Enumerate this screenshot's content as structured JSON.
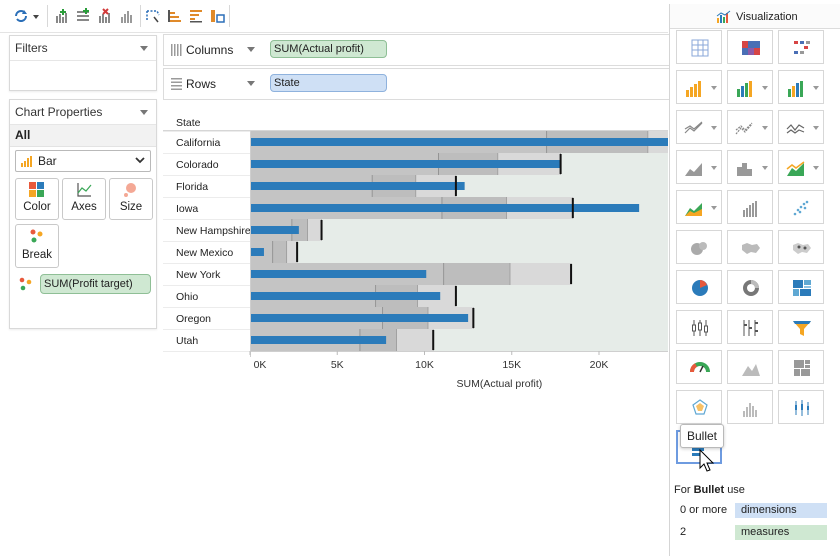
{
  "toolbar": {
    "icons": [
      "swap-icon",
      "add-columns-icon",
      "add-rows-icon",
      "remove-icon",
      "bar-chart-icon",
      "lasso-icon",
      "sort-ascending-icon",
      "sort-descending-icon",
      "label-icon"
    ]
  },
  "filters": {
    "title": "Filters"
  },
  "chart_properties": {
    "title": "Chart Properties",
    "scope": "All",
    "mark_type": "Bar",
    "buttons": {
      "color": "Color",
      "axes": "Axes",
      "size": "Size",
      "break": "Break"
    },
    "field": "SUM(Profit target)"
  },
  "shelves": {
    "columns_label": "Columns",
    "columns_pill": "SUM(Actual profit)",
    "rows_label": "Rows",
    "rows_pill": "State"
  },
  "chart_data": {
    "type": "bar",
    "row_header": "State",
    "categories": [
      "California",
      "Colorado",
      "Florida",
      "Iowa",
      "New Hampshire",
      "New Mexico",
      "New York",
      "Ohio",
      "Oregon",
      "Utah"
    ],
    "series": [
      {
        "name": "SUM(Actual profit)",
        "values": [
          24500,
          17800,
          12300,
          22300,
          2800,
          800,
          10100,
          10900,
          12500,
          7800
        ]
      },
      {
        "name": "SUM(Profit target)",
        "values": [
          null,
          17800,
          11800,
          18500,
          4100,
          2700,
          18400,
          11800,
          12800,
          10500
        ]
      }
    ],
    "bands": [
      [
        17000,
        22800,
        24500
      ],
      [
        10800,
        14200,
        17800
      ],
      [
        7000,
        9500,
        11800
      ],
      [
        11000,
        14700,
        18500
      ],
      [
        2400,
        3300,
        4100
      ],
      [
        1300,
        2100,
        2700
      ],
      [
        11100,
        14900,
        18400
      ],
      [
        7200,
        9600,
        11800
      ],
      [
        7600,
        10200,
        12800
      ],
      [
        6300,
        8400,
        10500
      ]
    ],
    "x_ticks": [
      "0K",
      "5K",
      "10K",
      "15K",
      "20K"
    ],
    "xlabel": "SUM(Actual profit)",
    "xlim": [
      0,
      24000
    ],
    "colors": {
      "bar": "#2b7bba",
      "band1": "#bdbdbd",
      "band2": "#d9d9d9",
      "band3": "#e6ece8",
      "target": "#111111"
    }
  },
  "viz": {
    "title": "Visualization",
    "tooltip": "Bullet",
    "footer_prefix": "For",
    "footer_chart": "Bullet",
    "footer_suffix": "use",
    "req1_count": "0 or more",
    "req1_type": "dimensions",
    "req2_count": "2",
    "req2_type": "measures",
    "tiles": [
      "table",
      "heatmap",
      "highlight-table",
      "bar",
      "stacked-bar",
      "side-by-side-bar",
      "line",
      "dual-line",
      "continuous-line",
      "area",
      "discrete-area",
      "dual-axis",
      "combo",
      "histogram-bars",
      "scatter",
      "bubble-map",
      "filled-map",
      "symbol-map",
      "pie",
      "donut",
      "treemap",
      "box-plot",
      "gantt",
      "funnel",
      "gauge",
      "mountain",
      "packed",
      "radar",
      "histogram",
      "high-low",
      "bullet"
    ]
  }
}
